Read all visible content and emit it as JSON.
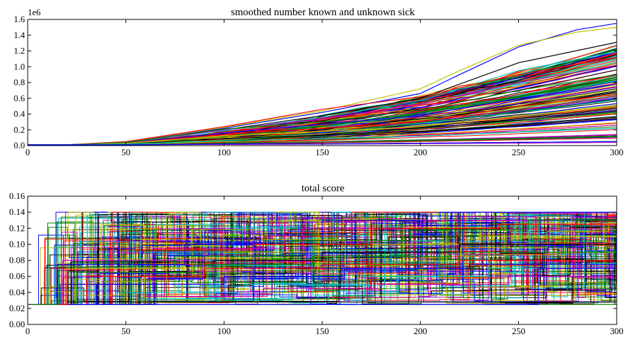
{
  "chart_data": [
    {
      "type": "line",
      "title": "smoothed number known and unknown sick",
      "xlabel": "",
      "ylabel": "",
      "y_offset_label": "1e6",
      "xlim": [
        0,
        300
      ],
      "ylim": [
        0.0,
        1.6
      ],
      "xticks": [
        "0",
        "50",
        "100",
        "150",
        "200",
        "250",
        "300"
      ],
      "yticks": [
        "0.0",
        "0.2",
        "0.4",
        "0.6",
        "0.8",
        "1.0",
        "1.2",
        "1.4",
        "1.6"
      ],
      "grid": false,
      "legend": "none",
      "series_count_note": "hundreds of overlapping simulation runs",
      "series": [
        {
          "color": "#0000ff",
          "points": [
            [
              0,
              0.01
            ],
            [
              20,
              0.01
            ],
            [
              50,
              0.05
            ],
            [
              100,
              0.22
            ],
            [
              150,
              0.42
            ],
            [
              200,
              0.66
            ],
            [
              220,
              0.9
            ],
            [
              250,
              1.25
            ],
            [
              280,
              1.47
            ],
            [
              300,
              1.55
            ]
          ]
        },
        {
          "color": "#bfbf00",
          "points": [
            [
              0,
              0.01
            ],
            [
              20,
              0.01
            ],
            [
              50,
              0.05
            ],
            [
              100,
              0.23
            ],
            [
              150,
              0.44
            ],
            [
              200,
              0.72
            ],
            [
              220,
              0.95
            ],
            [
              250,
              1.27
            ],
            [
              280,
              1.44
            ],
            [
              300,
              1.5
            ]
          ]
        },
        {
          "color": "#000000",
          "points": [
            [
              0,
              0.01
            ],
            [
              20,
              0.01
            ],
            [
              50,
              0.04
            ],
            [
              100,
              0.2
            ],
            [
              150,
              0.38
            ],
            [
              200,
              0.6
            ],
            [
              250,
              1.05
            ],
            [
              300,
              1.31
            ]
          ]
        },
        {
          "color": "#00bfbf",
          "points": [
            [
              0,
              0.01
            ],
            [
              20,
              0.01
            ],
            [
              50,
              0.04
            ],
            [
              100,
              0.19
            ],
            [
              150,
              0.36
            ],
            [
              200,
              0.57
            ],
            [
              250,
              0.95
            ],
            [
              300,
              1.19
            ]
          ]
        },
        {
          "color": "#ff0000",
          "points": [
            [
              0,
              0.01
            ],
            [
              20,
              0.01
            ],
            [
              50,
              0.05
            ],
            [
              100,
              0.24
            ],
            [
              150,
              0.46
            ],
            [
              200,
              0.62
            ],
            [
              250,
              0.9
            ],
            [
              300,
              1.12
            ]
          ]
        },
        {
          "color": "#bf00bf",
          "points": [
            [
              0,
              0.01
            ],
            [
              20,
              0.01
            ],
            [
              50,
              0.04
            ],
            [
              100,
              0.2
            ],
            [
              150,
              0.34
            ],
            [
              200,
              0.52
            ],
            [
              250,
              0.8
            ],
            [
              300,
              1.02
            ]
          ]
        },
        {
          "color": "#008000",
          "points": [
            [
              0,
              0.01
            ],
            [
              20,
              0.01
            ],
            [
              50,
              0.04
            ],
            [
              100,
              0.21
            ],
            [
              150,
              0.3
            ],
            [
              200,
              0.45
            ],
            [
              250,
              0.7
            ],
            [
              300,
              0.9
            ]
          ]
        },
        {
          "color": "#0000ff",
          "points": [
            [
              0,
              0.01
            ],
            [
              20,
              0.01
            ],
            [
              50,
              0.03
            ],
            [
              100,
              0.16
            ],
            [
              150,
              0.27
            ],
            [
              200,
              0.38
            ],
            [
              250,
              0.6
            ],
            [
              300,
              0.78
            ]
          ]
        },
        {
          "color": "#ff0000",
          "points": [
            [
              0,
              0.01
            ],
            [
              20,
              0.01
            ],
            [
              50,
              0.03
            ],
            [
              100,
              0.14
            ],
            [
              150,
              0.22
            ],
            [
              200,
              0.3
            ],
            [
              250,
              0.5
            ],
            [
              300,
              0.65
            ]
          ]
        },
        {
          "color": "#bfbf00",
          "points": [
            [
              0,
              0.01
            ],
            [
              20,
              0.01
            ],
            [
              50,
              0.03
            ],
            [
              100,
              0.12
            ],
            [
              150,
              0.18
            ],
            [
              200,
              0.24
            ],
            [
              250,
              0.38
            ],
            [
              300,
              0.5
            ]
          ]
        },
        {
          "color": "#000000",
          "points": [
            [
              0,
              0.01
            ],
            [
              20,
              0.01
            ],
            [
              50,
              0.02
            ],
            [
              100,
              0.09
            ],
            [
              150,
              0.13
            ],
            [
              200,
              0.18
            ],
            [
              250,
              0.26
            ],
            [
              300,
              0.36
            ]
          ]
        },
        {
          "color": "#00bfbf",
          "points": [
            [
              0,
              0.01
            ],
            [
              20,
              0.01
            ],
            [
              50,
              0.02
            ],
            [
              100,
              0.06
            ],
            [
              150,
              0.09
            ],
            [
              200,
              0.12
            ],
            [
              250,
              0.17
            ],
            [
              300,
              0.22
            ]
          ]
        },
        {
          "color": "#008000",
          "points": [
            [
              0,
              0.01
            ],
            [
              20,
              0.01
            ],
            [
              50,
              0.01
            ],
            [
              100,
              0.03
            ],
            [
              150,
              0.05
            ],
            [
              200,
              0.07
            ],
            [
              250,
              0.09
            ],
            [
              300,
              0.12
            ]
          ]
        },
        {
          "color": "#0000ff",
          "points": [
            [
              0,
              0.01
            ],
            [
              20,
              0.01
            ],
            [
              50,
              0.01
            ],
            [
              100,
              0.02
            ],
            [
              150,
              0.02
            ],
            [
              200,
              0.03
            ],
            [
              250,
              0.04
            ],
            [
              300,
              0.05
            ]
          ]
        }
      ]
    },
    {
      "type": "line",
      "title": "total score",
      "xlabel": "",
      "ylabel": "",
      "xlim": [
        0,
        300
      ],
      "ylim": [
        0.0,
        0.16
      ],
      "xticks": [
        "0",
        "50",
        "100",
        "150",
        "200",
        "250",
        "300"
      ],
      "yticks": [
        "0.00",
        "0.02",
        "0.04",
        "0.06",
        "0.08",
        "0.10",
        "0.12",
        "0.14",
        "0.16"
      ],
      "grid": false,
      "legend": "none",
      "series_count_note": "hundreds of overlapping step-function simulation runs",
      "series": [
        {
          "color": "#008000",
          "steps": [
            [
              0,
              0.025
            ],
            [
              300,
              0.026
            ]
          ]
        },
        {
          "color": "#000000",
          "steps": [
            [
              0,
              0.025
            ],
            [
              20,
              0.028
            ],
            [
              60,
              0.028
            ],
            [
              100,
              0.028
            ],
            [
              300,
              0.028
            ]
          ]
        },
        {
          "color": "#00bfbf",
          "steps": [
            [
              0,
              0.025
            ],
            [
              10,
              0.07
            ],
            [
              60,
              0.09
            ],
            [
              105,
              0.12
            ],
            [
              155,
              0.14
            ],
            [
              300,
              0.14
            ]
          ]
        },
        {
          "color": "#ff0000",
          "steps": [
            [
              0,
              0.025
            ],
            [
              12,
              0.07
            ],
            [
              70,
              0.095
            ],
            [
              120,
              0.11
            ],
            [
              165,
              0.14
            ],
            [
              300,
              0.14
            ]
          ]
        },
        {
          "color": "#0000ff",
          "steps": [
            [
              0,
              0.025
            ],
            [
              15,
              0.075
            ],
            [
              80,
              0.1
            ],
            [
              150,
              0.13
            ],
            [
              210,
              0.14
            ],
            [
              300,
              0.135
            ]
          ]
        },
        {
          "color": "#bf00bf",
          "steps": [
            [
              0,
              0.025
            ],
            [
              18,
              0.08
            ],
            [
              90,
              0.095
            ],
            [
              140,
              0.12
            ],
            [
              200,
              0.13
            ],
            [
              300,
              0.13
            ]
          ]
        },
        {
          "color": "#bfbf00",
          "steps": [
            [
              0,
              0.025
            ],
            [
              20,
              0.07
            ],
            [
              100,
              0.09
            ],
            [
              160,
              0.1
            ],
            [
              230,
              0.11
            ],
            [
              300,
              0.12
            ]
          ]
        },
        {
          "color": "#000000",
          "steps": [
            [
              0,
              0.025
            ],
            [
              22,
              0.078
            ],
            [
              95,
              0.08
            ],
            [
              150,
              0.09
            ],
            [
              220,
              0.1
            ],
            [
              300,
              0.1
            ]
          ]
        },
        {
          "color": "#008000",
          "steps": [
            [
              0,
              0.025
            ],
            [
              25,
              0.065
            ],
            [
              85,
              0.075
            ],
            [
              145,
              0.085
            ],
            [
              215,
              0.09
            ],
            [
              300,
              0.09
            ]
          ]
        },
        {
          "color": "#ff0000",
          "steps": [
            [
              0,
              0.025
            ],
            [
              30,
              0.06
            ],
            [
              90,
              0.07
            ],
            [
              150,
              0.075
            ],
            [
              220,
              0.08
            ],
            [
              300,
              0.08
            ]
          ]
        },
        {
          "color": "#0000ff",
          "steps": [
            [
              0,
              0.025
            ],
            [
              35,
              0.05
            ],
            [
              100,
              0.06
            ],
            [
              160,
              0.07
            ],
            [
              225,
              0.075
            ],
            [
              300,
              0.075
            ]
          ]
        },
        {
          "color": "#00bfbf",
          "steps": [
            [
              0,
              0.025
            ],
            [
              45,
              0.04
            ],
            [
              110,
              0.05
            ],
            [
              170,
              0.06
            ],
            [
              235,
              0.07
            ],
            [
              300,
              0.07
            ]
          ]
        },
        {
          "color": "#bf00bf",
          "steps": [
            [
              0,
              0.025
            ],
            [
              60,
              0.035
            ],
            [
              120,
              0.045
            ],
            [
              180,
              0.05
            ],
            [
              245,
              0.06
            ],
            [
              300,
              0.065
            ]
          ]
        },
        {
          "color": "#0000ff",
          "steps": [
            [
              0,
              0.025
            ],
            [
              250,
              0.025
            ],
            [
              260,
              0.07
            ],
            [
              300,
              0.07
            ]
          ]
        },
        {
          "color": "#ff0000",
          "steps": [
            [
              0,
              0.025
            ],
            [
              20,
              0.068
            ],
            [
              55,
              0.093
            ],
            [
              115,
              0.1
            ],
            [
              175,
              0.12
            ],
            [
              240,
              0.125
            ],
            [
              300,
              0.125
            ]
          ]
        },
        {
          "color": "#008000",
          "steps": [
            [
              0,
              0.025
            ],
            [
              16,
              0.072
            ],
            [
              75,
              0.085
            ],
            [
              135,
              0.105
            ],
            [
              195,
              0.118
            ],
            [
              255,
              0.13
            ],
            [
              300,
              0.13
            ]
          ]
        }
      ]
    }
  ]
}
